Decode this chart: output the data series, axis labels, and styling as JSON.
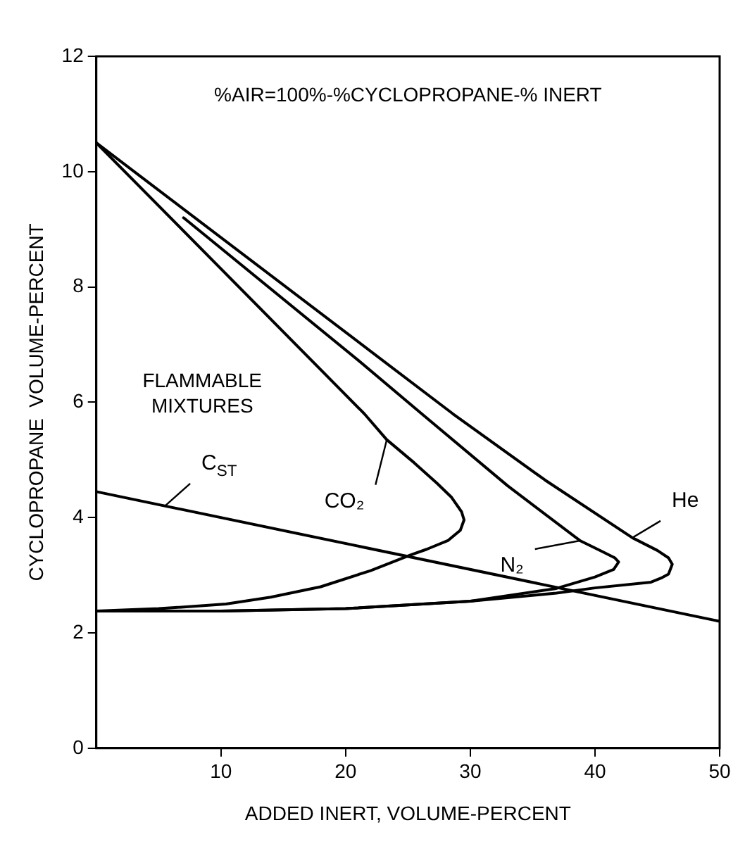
{
  "chart_data": {
    "type": "line",
    "xlabel": "ADDED INERT, VOLUME-PERCENT",
    "ylabel": "CYCLOPROPANE  VOLUME-PERCENT",
    "xlim": [
      0,
      50
    ],
    "xticks": [
      10,
      20,
      30,
      40,
      50
    ],
    "ylim": [
      0,
      12
    ],
    "yticks": [
      0,
      2,
      4,
      6,
      8,
      10,
      12
    ],
    "grid": false,
    "legend": false,
    "marker": "none",
    "line_style": "solid",
    "series": [
      {
        "color": "#000000",
        "x": [
          0,
          50
        ],
        "values": [
          4.45,
          2.2
        ]
      },
      {
        "color": "#000000",
        "x": [
          0,
          21.5,
          23.3,
          25.5,
          27.3,
          28.5,
          29.3,
          29.5,
          29.2,
          28.2,
          26.5,
          25.2,
          22,
          18,
          14,
          10.4,
          5,
          0
        ],
        "values": [
          10.5,
          5.8,
          5.35,
          4.95,
          4.6,
          4.35,
          4.1,
          3.96,
          3.78,
          3.6,
          3.45,
          3.35,
          3.08,
          2.8,
          2.62,
          2.5,
          2.42,
          2.38
        ]
      },
      {
        "color": "#000000",
        "x": [
          7,
          21,
          26.1,
          33,
          38.8,
          40.5,
          41.6,
          41.9,
          41.5,
          40,
          36.9,
          30,
          20,
          10,
          0
        ],
        "values": [
          9.2,
          6.73,
          5.8,
          4.55,
          3.6,
          3.42,
          3.3,
          3.23,
          3.1,
          2.97,
          2.77,
          2.55,
          2.42,
          2.38,
          2.38
        ]
      },
      {
        "color": "#000000",
        "x": [
          0,
          28.6,
          36,
          43,
          45,
          45.9,
          46.2,
          45.9,
          45.3,
          44.5,
          40,
          36.9,
          30,
          20,
          10,
          0
        ],
        "values": [
          10.5,
          5.8,
          4.65,
          3.65,
          3.43,
          3.3,
          3.19,
          3.02,
          2.95,
          2.88,
          2.78,
          2.69,
          2.55,
          2.42,
          2.38,
          2.38
        ]
      }
    ],
    "annotations": [
      "%AIR=100%-%CYCLOPROPANE-% INERT",
      "FLAMMABLE MIXTURES",
      {
        "text": "C$_{ST}$",
        "x": 5.5,
        "y": 4.2
      },
      {
        "text": "CO₂",
        "x": 23.3,
        "y": 5.35
      },
      {
        "text": "N₂",
        "x": 38.8,
        "y": 3.6
      },
      {
        "text": "He",
        "x": 43,
        "y": 3.65
      }
    ]
  }
}
